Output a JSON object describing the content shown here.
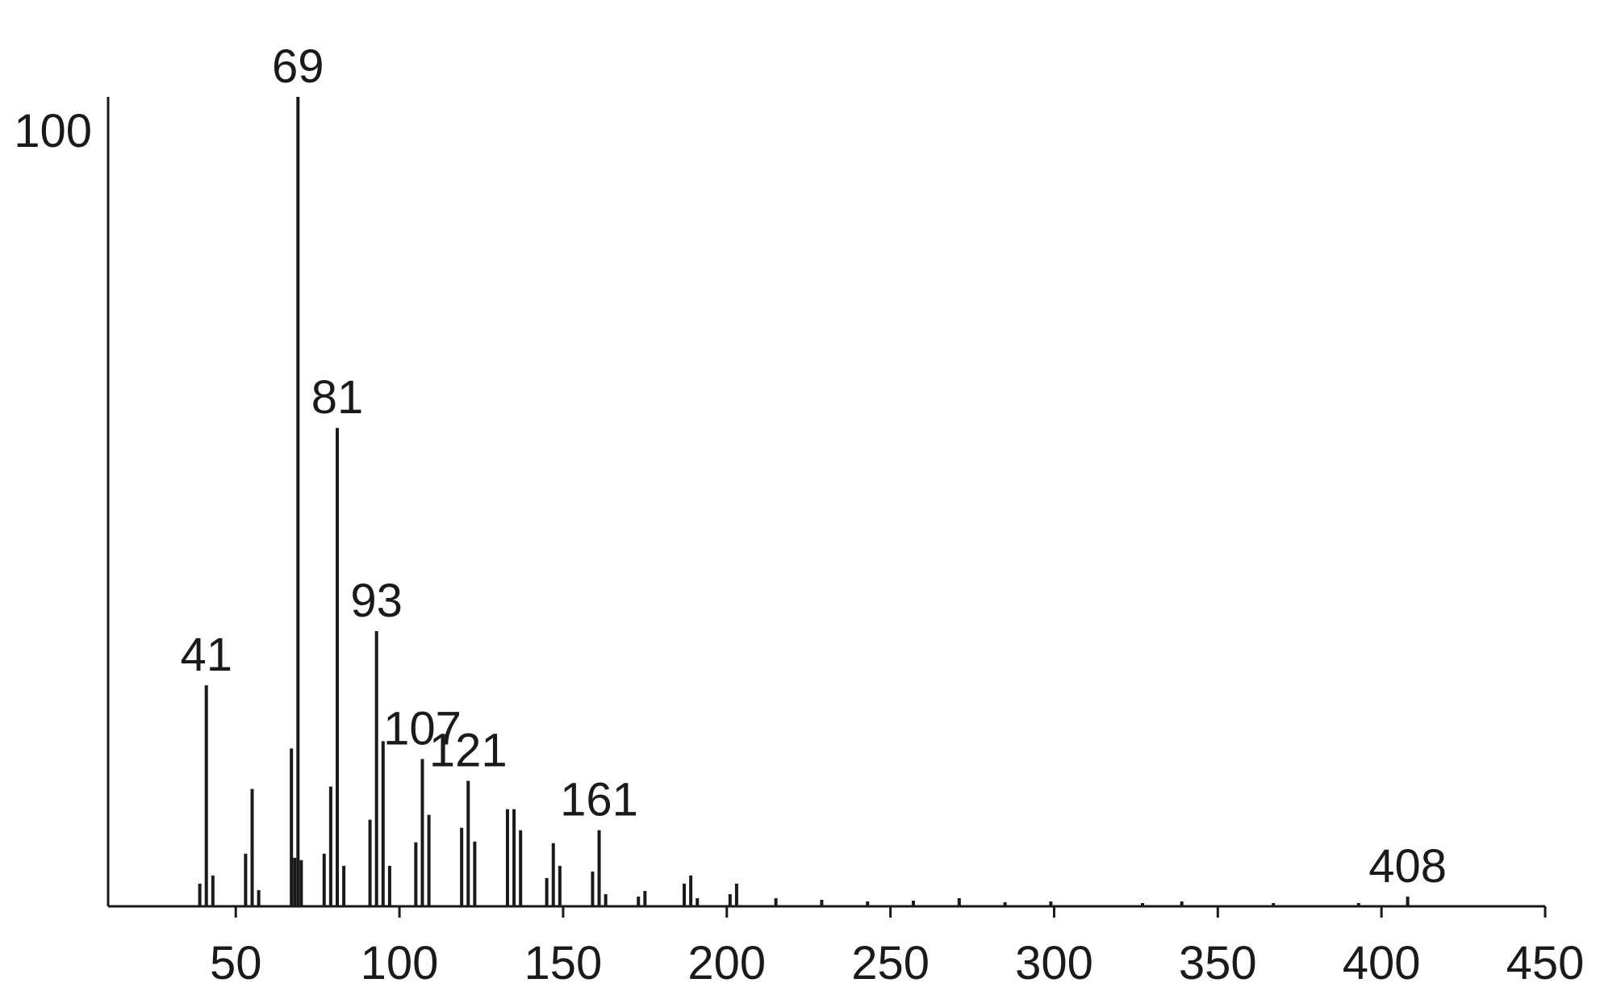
{
  "chart_data": {
    "type": "bar",
    "color": "#1a1a1a",
    "x": [
      39,
      41,
      43,
      53,
      55,
      57,
      67,
      68,
      69,
      70,
      77,
      79,
      81,
      83,
      91,
      93,
      95,
      97,
      105,
      107,
      109,
      119,
      121,
      123,
      133,
      135,
      137,
      145,
      147,
      149,
      159,
      161,
      163,
      173,
      175,
      187,
      189,
      191,
      201,
      203,
      215,
      229,
      243,
      257,
      271,
      285,
      299,
      327,
      339,
      367,
      393,
      408
    ],
    "values": [
      2.8,
      27.3,
      3.8,
      6.5,
      14.5,
      2,
      19.5,
      6,
      100,
      5.7,
      6.5,
      14.8,
      59.1,
      5,
      10.7,
      34,
      20.4,
      5,
      7.9,
      18.2,
      11.3,
      9.7,
      15.5,
      8,
      12,
      12,
      9.4,
      3.5,
      7.8,
      5,
      4.3,
      9.4,
      1.5,
      1.2,
      1.9,
      2.8,
      3.8,
      1,
      1.5,
      2.8,
      1,
      0.8,
      0.6,
      0.7,
      1,
      0.5,
      0.6,
      0.4,
      0.6,
      0.4,
      0.4,
      1.2
    ],
    "peak_labels": [
      41,
      69,
      81,
      93,
      107,
      121,
      161,
      408
    ],
    "xlim": [
      11,
      450
    ],
    "xticks": [
      50,
      100,
      150,
      200,
      250,
      300,
      350,
      400,
      450
    ],
    "ylim": [
      0,
      100
    ],
    "yticks": [
      100
    ]
  }
}
